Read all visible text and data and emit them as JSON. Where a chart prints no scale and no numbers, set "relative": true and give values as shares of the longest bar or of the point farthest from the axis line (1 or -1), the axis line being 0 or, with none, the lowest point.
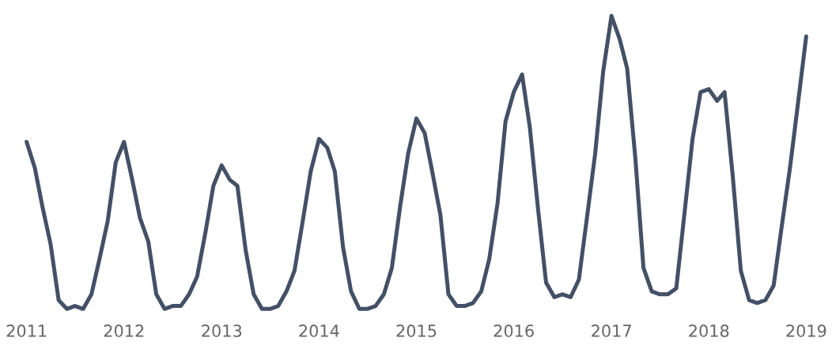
{
  "chart_data": {
    "type": "line",
    "relative": true,
    "grid": false,
    "legend": false,
    "marker": "none",
    "line_style": "solid",
    "x": [
      "2011-01",
      "2011-02",
      "2011-03",
      "2011-04",
      "2011-05",
      "2011-06",
      "2011-07",
      "2011-08",
      "2011-09",
      "2011-10",
      "2011-11",
      "2011-12",
      "2012-01",
      "2012-02",
      "2012-03",
      "2012-04",
      "2012-05",
      "2012-06",
      "2012-07",
      "2012-08",
      "2012-09",
      "2012-10",
      "2012-11",
      "2012-12",
      "2013-01",
      "2013-02",
      "2013-03",
      "2013-04",
      "2013-05",
      "2013-06",
      "2013-07",
      "2013-08",
      "2013-09",
      "2013-10",
      "2013-11",
      "2013-12",
      "2014-01",
      "2014-02",
      "2014-03",
      "2014-04",
      "2014-05",
      "2014-06",
      "2014-07",
      "2014-08",
      "2014-09",
      "2014-10",
      "2014-11",
      "2014-12",
      "2015-01",
      "2015-02",
      "2015-03",
      "2015-04",
      "2015-05",
      "2015-06",
      "2015-07",
      "2015-08",
      "2015-09",
      "2015-10",
      "2015-11",
      "2015-12",
      "2016-01",
      "2016-02",
      "2016-03",
      "2016-04",
      "2016-05",
      "2016-06",
      "2016-07",
      "2016-08",
      "2016-09",
      "2016-10",
      "2016-11",
      "2016-12",
      "2017-01",
      "2017-02",
      "2017-03",
      "2017-04",
      "2017-05",
      "2017-06",
      "2017-07",
      "2017-08",
      "2017-09",
      "2017-10",
      "2017-11",
      "2017-12",
      "2018-01",
      "2018-02",
      "2018-03",
      "2018-04",
      "2018-05",
      "2018-06",
      "2018-07",
      "2018-08",
      "2018-09",
      "2018-10",
      "2018-11",
      "2018-12",
      "2019-01"
    ],
    "series": [
      {
        "color": "#435066",
        "values": [
          0.57,
          0.48,
          0.35,
          0.22,
          0.03,
          0,
          0.01,
          0,
          0.05,
          0.17,
          0.3,
          0.5,
          0.57,
          0.44,
          0.31,
          0.23,
          0.05,
          0,
          0.01,
          0.01,
          0.05,
          0.11,
          0.26,
          0.42,
          0.49,
          0.44,
          0.42,
          0.2,
          0.05,
          0,
          0,
          0.01,
          0.06,
          0.13,
          0.3,
          0.47,
          0.58,
          0.55,
          0.47,
          0.21,
          0.06,
          0,
          0,
          0.01,
          0.05,
          0.14,
          0.35,
          0.53,
          0.65,
          0.6,
          0.47,
          0.32,
          0.05,
          0.01,
          0.01,
          0.02,
          0.06,
          0.17,
          0.36,
          0.64,
          0.74,
          0.8,
          0.62,
          0.34,
          0.09,
          0.04,
          0.05,
          0.04,
          0.1,
          0.31,
          0.53,
          0.81,
          1,
          0.92,
          0.82,
          0.51,
          0.14,
          0.06,
          0.05,
          0.05,
          0.07,
          0.32,
          0.58,
          0.74,
          0.75,
          0.71,
          0.74,
          0.45,
          0.13,
          0.03,
          0.02,
          0.03,
          0.08,
          0.28,
          0.48,
          0.7,
          0.93
        ]
      }
    ],
    "xlim": [
      "2011",
      "2019"
    ],
    "xticks": [
      "2011",
      "2012",
      "2013",
      "2014",
      "2015",
      "2016",
      "2017",
      "2018",
      "2019"
    ]
  }
}
